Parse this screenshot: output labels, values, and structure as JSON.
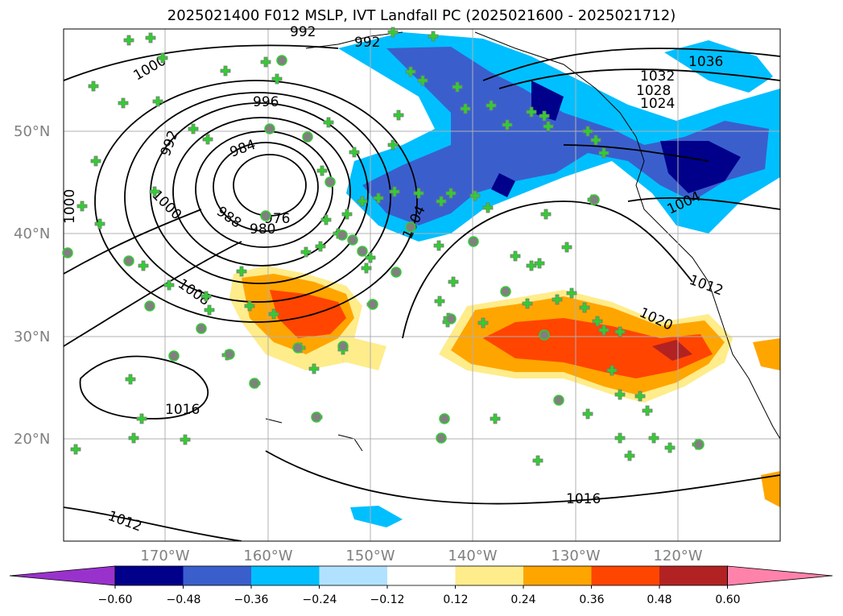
{
  "title": "2025021400 F012 MSLP, IVT Landfall PC (2025021600 - 2025021712)",
  "axes": {
    "lat_labels": [
      "50°N",
      "40°N",
      "30°N",
      "20°N"
    ],
    "lon_labels": [
      "170°W",
      "160°W",
      "150°W",
      "140°W",
      "130°W",
      "120°W"
    ]
  },
  "contour_labels": [
    "992",
    "1000",
    "996",
    "992",
    "984",
    "988",
    "976",
    "980",
    "1000",
    "1008",
    "1004",
    "1016",
    "1012",
    "1020",
    "1012",
    "1004",
    "1016",
    "1036",
    "1032",
    "1028",
    "1024",
    "1020",
    "992",
    "1000"
  ],
  "colorbar": {
    "ticks": [
      "−0.60",
      "−0.48",
      "−0.36",
      "−0.24",
      "−0.12",
      "0.12",
      "0.24",
      "0.36",
      "0.48",
      "0.60"
    ],
    "colors": [
      "#9932cc",
      "#00008b",
      "#3a5fcd",
      "#00bfff",
      "#b0e2ff",
      "#ffffff",
      "#ffec8b",
      "#ffa500",
      "#ff4500",
      "#b22222",
      "#ff82ab"
    ]
  }
}
